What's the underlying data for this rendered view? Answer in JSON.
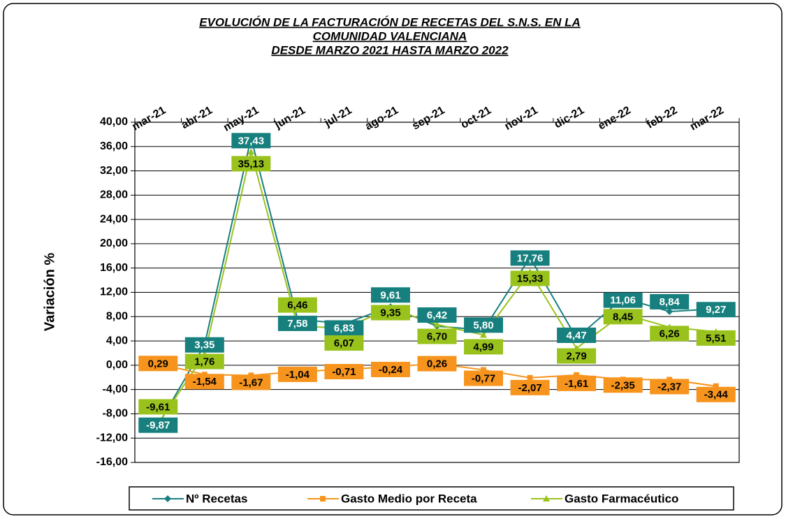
{
  "chart_data": {
    "type": "line",
    "title": [
      "EVOLUCIÓN DE LA FACTURACIÓN DE RECETAS DEL S.N.S. EN LA",
      "COMUNIDAD VALENCIANA",
      "DESDE MARZO 2021 HASTA MARZO 2022"
    ],
    "y_label": "Variación %",
    "categories": [
      "mar-21",
      "abr-21",
      "may-21",
      "jun-21",
      "jul-21",
      "ago-21",
      "sep-21",
      "oct-21",
      "nov-21",
      "dic-21",
      "ene-22",
      "feb-22",
      "mar-22"
    ],
    "series": [
      {
        "name": "Nº Recetas",
        "color": "#1a7f7f",
        "values": [
          -9.87,
          3.35,
          37.43,
          7.58,
          6.83,
          9.61,
          6.42,
          5.8,
          17.76,
          4.47,
          11.06,
          8.84,
          9.27
        ],
        "value_labels": [
          "-9,87",
          "3,35",
          "37,43",
          "7,58",
          "6,83",
          "9,61",
          "6,42",
          "5,80",
          "17,76",
          "4,47",
          "11,06",
          "8,84",
          "9,27"
        ]
      },
      {
        "name": "Gasto Medio por Receta",
        "color": "#f7941d",
        "values": [
          0.29,
          -1.54,
          -1.67,
          -1.04,
          -0.71,
          -0.24,
          0.26,
          -0.77,
          -2.07,
          -1.61,
          -2.35,
          -2.37,
          -3.44
        ],
        "value_labels": [
          "0,29",
          "-1,54",
          "-1,67",
          "-1,04",
          "-0,71",
          "-0,24",
          "0,26",
          "-0,77",
          "-2,07",
          "-1,61",
          "-2,35",
          "-2,37",
          "-3,44"
        ]
      },
      {
        "name": "Gasto Farmacéutico",
        "color": "#99c31c",
        "values": [
          -9.61,
          1.76,
          35.13,
          6.46,
          6.07,
          9.35,
          6.7,
          4.99,
          15.33,
          2.79,
          8.45,
          6.26,
          5.51
        ],
        "value_labels": [
          "-9,61",
          "1,76",
          "35,13",
          "6,46",
          "6,07",
          "9,35",
          "6,70",
          "4,99",
          "15,33",
          "2,79",
          "8,45",
          "6,26",
          "5,51"
        ]
      }
    ],
    "ylim": [
      -16,
      40
    ],
    "yticks": [
      {
        "value": -16,
        "label": "-16,00"
      },
      {
        "value": -12,
        "label": "-12,00"
      },
      {
        "value": -8,
        "label": "-8,00"
      },
      {
        "value": -4,
        "label": "-4,00"
      },
      {
        "value": 0,
        "label": "0,00"
      },
      {
        "value": 4,
        "label": "4,00"
      },
      {
        "value": 8,
        "label": "8,00"
      },
      {
        "value": 12,
        "label": "12,00"
      },
      {
        "value": 16,
        "label": "16,00"
      },
      {
        "value": 20,
        "label": "20,00"
      },
      {
        "value": 24,
        "label": "24,00"
      },
      {
        "value": 28,
        "label": "28,00"
      },
      {
        "value": 32,
        "label": "32,00"
      },
      {
        "value": 36,
        "label": "36,00"
      },
      {
        "value": 40,
        "label": "40,00"
      }
    ],
    "grid": true,
    "legend": "bottom"
  }
}
